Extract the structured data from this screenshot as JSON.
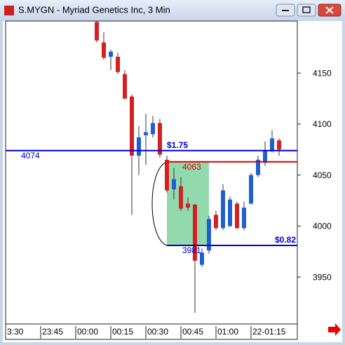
{
  "window": {
    "title": "S.MYGN - Myriad Genetics Inc, 3 Min"
  },
  "chart_data": {
    "type": "candlestick",
    "x": [
      13,
      14,
      15,
      16,
      17,
      18,
      19,
      20,
      21,
      22,
      23,
      24,
      25,
      26,
      27,
      28,
      29,
      30,
      31,
      32,
      33,
      34,
      35,
      36,
      37,
      38,
      39
    ],
    "open": [
      4200,
      4180,
      4166,
      4166,
      4149,
      4127,
      4069,
      4089,
      4090,
      4101,
      4065,
      4036,
      4039,
      4022,
      4021,
      3962,
      3976,
      4011,
      3998,
      4000,
      4022,
      3998,
      4022,
      4050,
      4062,
      4074,
      4084
    ],
    "high": [
      4201,
      4190,
      4173,
      4170,
      4153,
      4129,
      4098,
      4110,
      4108,
      4105,
      4069,
      4057,
      4048,
      4028,
      4022,
      3978,
      4010,
      4015,
      4041,
      4029,
      4024,
      4024,
      4052,
      4069,
      4083,
      4094,
      4086
    ],
    "low": [
      4180,
      4163,
      4153,
      4149,
      4124,
      4011,
      4050,
      4060,
      4087,
      4067,
      4033,
      4026,
      4015,
      4015,
      3915,
      3960,
      3973,
      3996,
      3996,
      3999,
      3997,
      3996,
      4021,
      4048,
      4059,
      4072,
      4069
    ],
    "close": [
      4182,
      4165,
      4171,
      4151,
      4125,
      4069,
      4087,
      4092,
      4101,
      4070,
      4035,
      4046,
      4017,
      4018,
      3966,
      3974,
      4007,
      3998,
      4035,
      4026,
      3998,
      4018,
      4050,
      4065,
      4074,
      4086,
      4075
    ],
    "up_color": "#1f5fcf",
    "down_color": "#d42020",
    "xlim": [
      0,
      41.6
    ],
    "xticks": [
      {
        "value": 0,
        "label": "3:30"
      },
      {
        "value": 5,
        "label": "23:45"
      },
      {
        "value": 10,
        "label": "00:00"
      },
      {
        "value": 15,
        "label": "00:15"
      },
      {
        "value": 20,
        "label": "00:30"
      },
      {
        "value": 25,
        "label": "00:45"
      },
      {
        "value": 30,
        "label": "01:00"
      },
      {
        "value": 35,
        "label": "22-01:15"
      }
    ],
    "ylim": [
      3904,
      4201
    ],
    "yticks": [
      3950,
      4000,
      4050,
      4100,
      4150
    ],
    "levels": [
      {
        "value": 4074,
        "label": "4074",
        "note": "$1.75",
        "color": "#0000cc",
        "from": 0
      },
      {
        "value": 4063,
        "label": "4063",
        "color": "#dd0000",
        "from": 23
      },
      {
        "value": 3981,
        "label": "3981",
        "note": "$0.82",
        "color": "#0000cc",
        "from": 23
      }
    ],
    "box": {
      "x": [
        23,
        29
      ],
      "y": [
        3981,
        4063
      ],
      "color": "#7fd4a0"
    }
  }
}
